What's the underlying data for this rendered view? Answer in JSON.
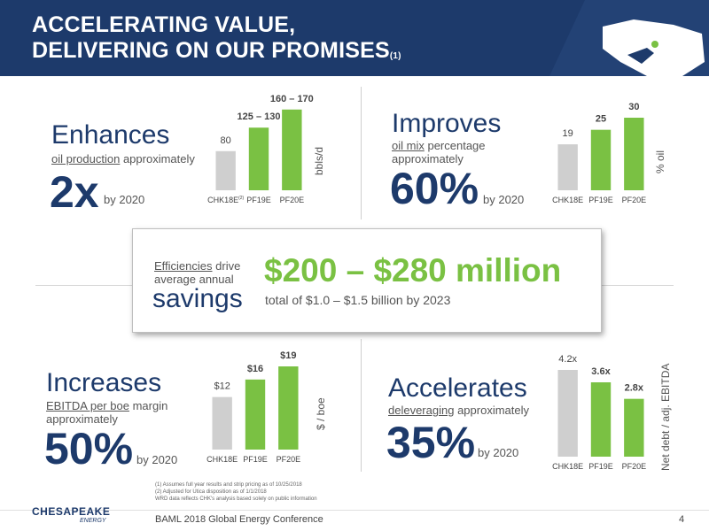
{
  "header": {
    "title_line1": "ACCELERATING VALUE,",
    "title_line2": "DELIVERING ON OUR PROMISES",
    "title_sup": "(1)"
  },
  "panels": {
    "enhances": {
      "title": "Enhances",
      "metric": "oil production",
      "approx": "approximately",
      "value": "2x",
      "by": "by 2020"
    },
    "improves": {
      "title": "Improves",
      "metric": "oil mix",
      "approx_line1": "percentage",
      "approx_line2": "approximately",
      "value": "60%",
      "by": "by 2020"
    },
    "increases": {
      "title": "Increases",
      "metric": "EBITDA per boe",
      "approx_line1": "margin",
      "approx_line2": "approximately",
      "value": "50%",
      "by": "by 2020"
    },
    "accelerates": {
      "title": "Accelerates",
      "metric": "deleveraging",
      "approx": "approximately",
      "value": "35%",
      "by": "by 2020"
    }
  },
  "callout": {
    "eff_metric": "Efficiencies",
    "eff_rest": "drive",
    "eff_line2": "average annual",
    "savings": "savings",
    "amount": "$200 – $280 million",
    "total": "total of $1.0 – $1.5 billion by 2023"
  },
  "chart_data": [
    {
      "id": "production",
      "type": "bar",
      "categories": [
        "CHK18E",
        "PF19E",
        "PF20E"
      ],
      "category_sup": [
        "(2)",
        "",
        ""
      ],
      "values": [
        80,
        128,
        165
      ],
      "labels": [
        "80",
        "125 – 130",
        "160 – 170"
      ],
      "ylabel": "bbls/d",
      "colors": [
        "#cfcfcf",
        "#7ac143",
        "#7ac143"
      ],
      "bold": [
        false,
        true,
        true
      ],
      "ylim": [
        0,
        170
      ]
    },
    {
      "id": "oilmix",
      "type": "bar",
      "categories": [
        "CHK18E",
        "PF19E",
        "PF20E"
      ],
      "values": [
        19,
        25,
        30
      ],
      "labels": [
        "19",
        "25",
        "30"
      ],
      "ylabel": "% oil",
      "colors": [
        "#cfcfcf",
        "#7ac143",
        "#7ac143"
      ],
      "bold": [
        false,
        true,
        true
      ],
      "ylim": [
        0,
        30
      ]
    },
    {
      "id": "ebitda",
      "type": "bar",
      "categories": [
        "CHK18E",
        "PF19E",
        "PF20E"
      ],
      "values": [
        12,
        16,
        19
      ],
      "labels": [
        "$12",
        "$16",
        "$19"
      ],
      "ylabel": "$ / boe",
      "colors": [
        "#cfcfcf",
        "#7ac143",
        "#7ac143"
      ],
      "bold": [
        false,
        true,
        true
      ],
      "ylim": [
        0,
        19
      ]
    },
    {
      "id": "leverage",
      "type": "bar",
      "categories": [
        "CHK18E",
        "PF19E",
        "PF20E"
      ],
      "values": [
        4.2,
        3.6,
        2.8
      ],
      "labels": [
        "4.2x",
        "3.6x",
        "2.8x"
      ],
      "ylabel": "Net debt / adj. EBITDA",
      "colors": [
        "#cfcfcf",
        "#7ac143",
        "#7ac143"
      ],
      "bold": [
        false,
        true,
        true
      ],
      "ylim": [
        0,
        4.2
      ]
    }
  ],
  "footnotes": [
    "(1)  Assumes full year results and strip pricing as of 10/25/2018",
    "(2)  Adjusted for Utica disposition as of 1/1/2018",
    "WRD data reflects CHK's analysis based solely on public information"
  ],
  "footer": {
    "logo_main": "CHESAPEAKE",
    "logo_sub": "ENERGY",
    "conference": "BAML 2018 Global Energy Conference",
    "page": "4"
  }
}
